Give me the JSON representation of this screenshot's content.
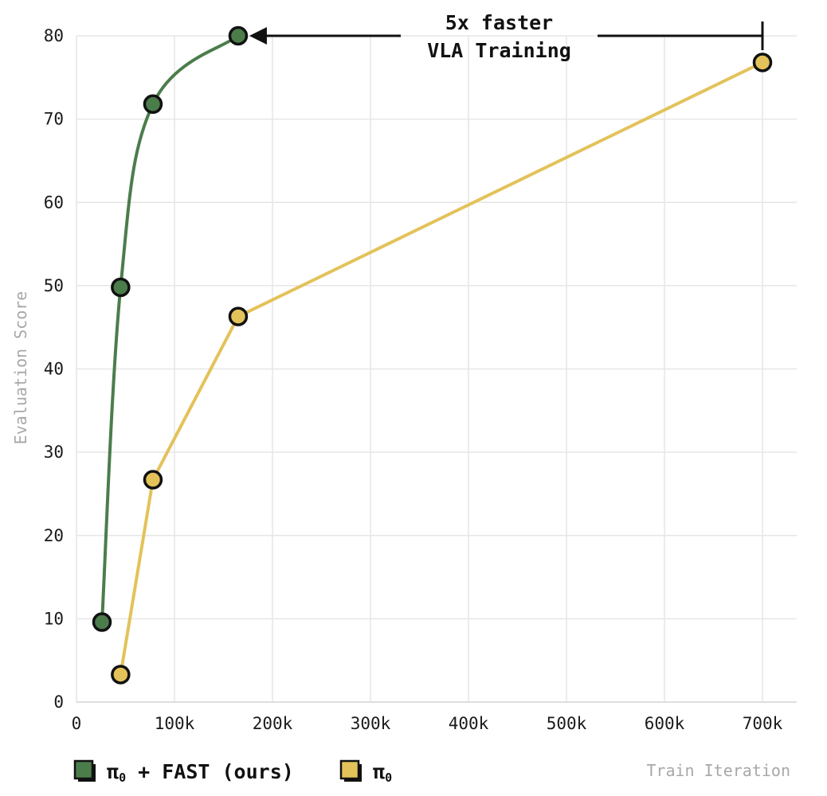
{
  "chart_data": {
    "type": "line",
    "xlabel": "Train Iteration",
    "ylabel": "Evaluation Score",
    "xlim": [
      0,
      720000
    ],
    "ylim": [
      0,
      80
    ],
    "x_ticks": [
      0,
      100000,
      200000,
      300000,
      400000,
      500000,
      600000,
      700000
    ],
    "x_tick_labels": [
      "0",
      "100k",
      "200k",
      "300k",
      "400k",
      "500k",
      "600k",
      "700k"
    ],
    "y_ticks": [
      0,
      10,
      20,
      30,
      40,
      50,
      60,
      70,
      80
    ],
    "y_tick_labels": [
      "0",
      "10",
      "20",
      "30",
      "40",
      "50",
      "60",
      "70",
      "80"
    ],
    "grid": true,
    "legend_position": "bottom-left",
    "series": [
      {
        "name": "π₀ + FAST (ours)",
        "legend_main": "π",
        "legend_sub": "0",
        "legend_rest": " + FAST (ours)",
        "color": "#4b7d4b",
        "points": [
          {
            "x": 26000,
            "y": 9.6
          },
          {
            "x": 45000,
            "y": 49.8
          },
          {
            "x": 78000,
            "y": 71.8
          },
          {
            "x": 165000,
            "y": 80.0
          }
        ]
      },
      {
        "name": "π₀",
        "legend_main": "π",
        "legend_sub": "0",
        "legend_rest": "",
        "color": "#e3c25a",
        "points": [
          {
            "x": 45000,
            "y": 3.3
          },
          {
            "x": 78000,
            "y": 26.7
          },
          {
            "x": 165000,
            "y": 46.3
          },
          {
            "x": 700000,
            "y": 76.8
          }
        ]
      }
    ],
    "annotation": {
      "line1": "5x faster",
      "line2": "VLA Training",
      "from_x": 700000,
      "to_x": 165000,
      "y": 80.0
    }
  }
}
